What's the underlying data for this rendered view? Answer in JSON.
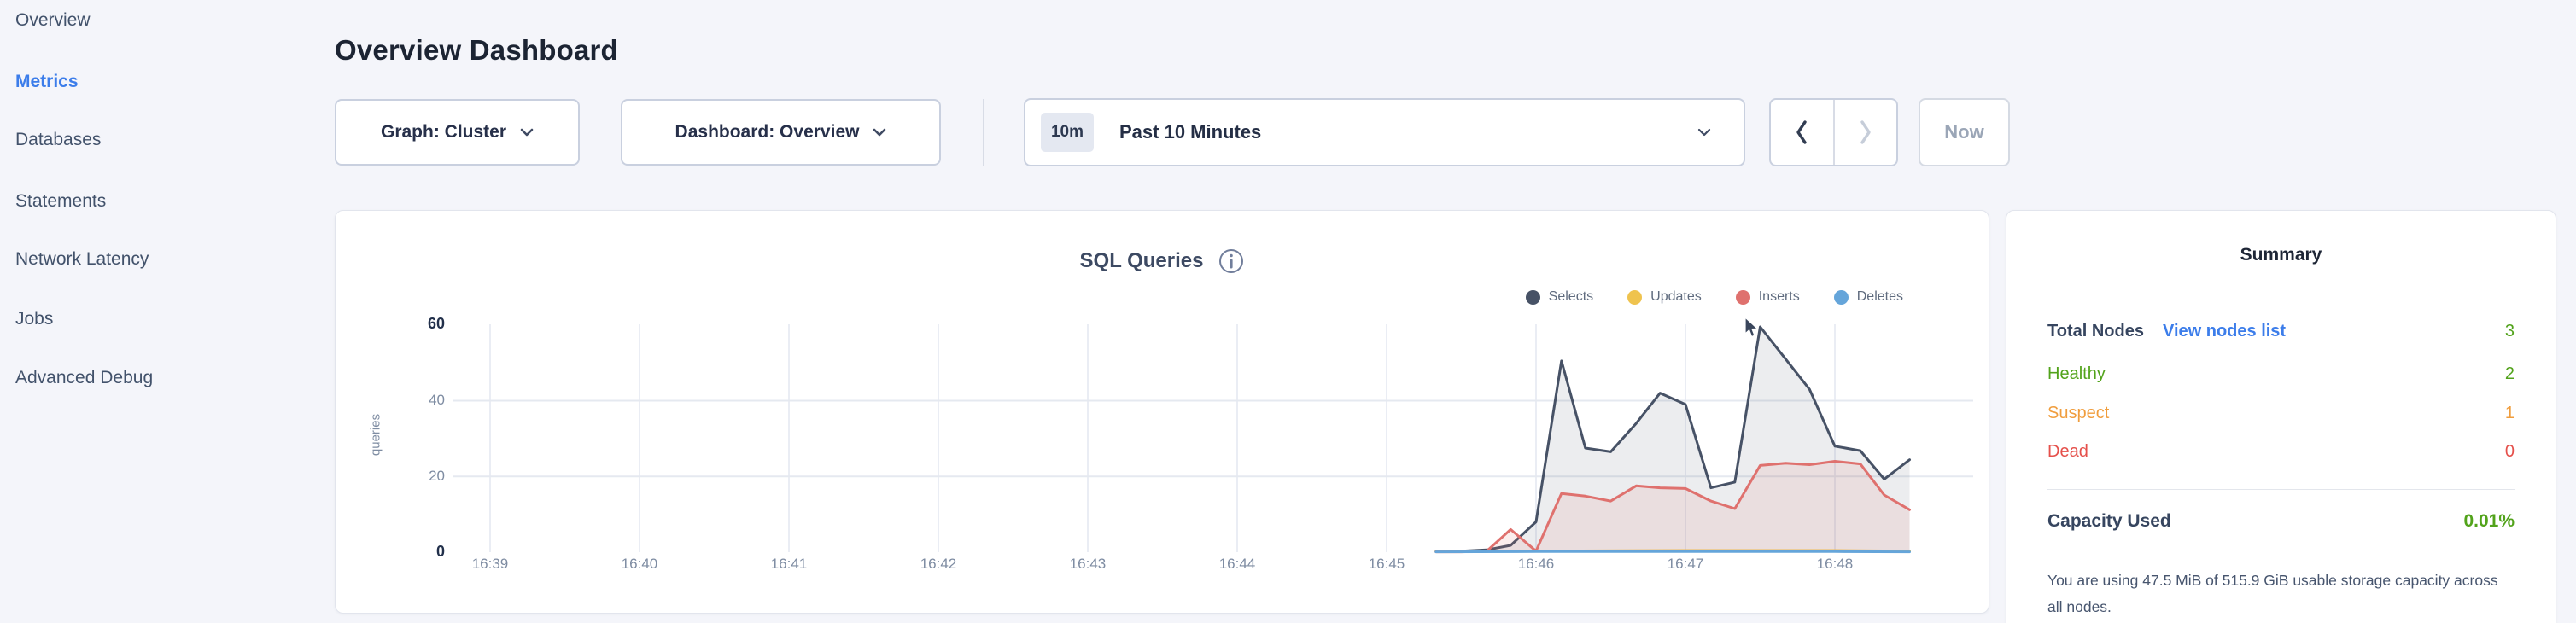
{
  "sidebar": {
    "items": [
      {
        "label": "Overview",
        "active": false
      },
      {
        "label": "Metrics",
        "active": true
      },
      {
        "label": "Databases",
        "active": false
      },
      {
        "label": "Statements",
        "active": false
      },
      {
        "label": "Network Latency",
        "active": false
      },
      {
        "label": "Jobs",
        "active": false
      },
      {
        "label": "Advanced Debug",
        "active": false
      }
    ]
  },
  "header": {
    "title": "Overview Dashboard"
  },
  "controls": {
    "graph_dropdown": {
      "label": "Graph: Cluster"
    },
    "dashboard_dropdown": {
      "label": "Dashboard: Overview"
    },
    "time_picker": {
      "badge": "10m",
      "label": "Past 10 Minutes"
    },
    "now_button": "Now"
  },
  "chart_data": {
    "type": "area",
    "title": "SQL Queries",
    "ylabel": "queries",
    "xlabel": "",
    "xticks": [
      "16:39",
      "16:40",
      "16:41",
      "16:42",
      "16:43",
      "16:44",
      "16:45",
      "16:46",
      "16:47",
      "16:48"
    ],
    "yticks": [
      0,
      20,
      40,
      60
    ],
    "ylim": [
      0,
      60
    ],
    "x_unit": "minutes after 16:39",
    "x_range": [
      0,
      9.55
    ],
    "grid": "horizontal lines at 20 and 40, vertical line at each minute tick",
    "legend_position": "top-right",
    "series": [
      {
        "name": "Selects",
        "color": "#475266",
        "fill": "rgba(71,82,102,0.10)",
        "points": [
          [
            6.33,
            0.2
          ],
          [
            6.5,
            0.3
          ],
          [
            6.67,
            0.6
          ],
          [
            6.83,
            1.8
          ],
          [
            7.0,
            8
          ],
          [
            7.17,
            50.5
          ],
          [
            7.33,
            27.5
          ],
          [
            7.5,
            26.5
          ],
          [
            7.67,
            34
          ],
          [
            7.83,
            42
          ],
          [
            8.0,
            39
          ],
          [
            8.17,
            17
          ],
          [
            8.33,
            18.5
          ],
          [
            8.5,
            59.5
          ],
          [
            8.67,
            51
          ],
          [
            8.83,
            43
          ],
          [
            9.0,
            28
          ],
          [
            9.17,
            26.8
          ],
          [
            9.33,
            19.3
          ],
          [
            9.5,
            24.4
          ]
        ]
      },
      {
        "name": "Updates",
        "color": "#efc34e",
        "fill": "rgba(239,195,78,0.12)",
        "points": [
          [
            6.33,
            0.2
          ],
          [
            7.0,
            0.3
          ],
          [
            8.0,
            0.45
          ],
          [
            9.0,
            0.45
          ],
          [
            9.5,
            0.3
          ]
        ]
      },
      {
        "name": "Inserts",
        "color": "#df716e",
        "fill": "rgba(223,113,110,0.12)",
        "points": [
          [
            6.33,
            0.1
          ],
          [
            6.5,
            0.1
          ],
          [
            6.67,
            0.3
          ],
          [
            6.83,
            6
          ],
          [
            7.0,
            0.3
          ],
          [
            7.17,
            15.5
          ],
          [
            7.33,
            14.8
          ],
          [
            7.5,
            13.5
          ],
          [
            7.67,
            17.5
          ],
          [
            7.83,
            17
          ],
          [
            8.0,
            16.8
          ],
          [
            8.17,
            13.5
          ],
          [
            8.33,
            11.5
          ],
          [
            8.5,
            22.9
          ],
          [
            8.67,
            23.5
          ],
          [
            8.83,
            23.1
          ],
          [
            9.0,
            24
          ],
          [
            9.17,
            23.3
          ],
          [
            9.33,
            15.1
          ],
          [
            9.5,
            11.2
          ]
        ]
      },
      {
        "name": "Deletes",
        "color": "#65a5da",
        "fill": "rgba(101,165,218,0.10)",
        "points": [
          [
            6.33,
            0.1
          ],
          [
            7.0,
            0.15
          ],
          [
            8.0,
            0.15
          ],
          [
            9.0,
            0.15
          ],
          [
            9.5,
            0.1
          ]
        ]
      }
    ]
  },
  "summary": {
    "title": "Summary",
    "total_nodes_label": "Total Nodes",
    "view_nodes_link": "View nodes list",
    "total_nodes_value": "3",
    "rows": [
      {
        "label": "Healthy",
        "value": "2",
        "color": "#52a31b"
      },
      {
        "label": "Suspect",
        "value": "1",
        "color": "#f09d3d"
      },
      {
        "label": "Dead",
        "value": "0",
        "color": "#e5504b"
      }
    ],
    "capacity_label": "Capacity Used",
    "capacity_value": "0.01%",
    "capacity_caption": "You are using 47.5 MiB of 515.9 GiB usable storage capacity across all nodes.",
    "colors": {
      "green": "#52a31b",
      "orange": "#f09d3d",
      "red": "#e5504b",
      "link_blue": "#3c7dea",
      "active_blue": "#3c7dea"
    }
  }
}
